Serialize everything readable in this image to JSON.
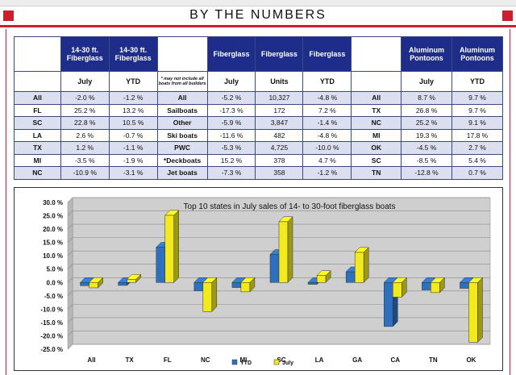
{
  "header": {
    "title": "BY THE NUMBERS"
  },
  "table": {
    "columns": [
      {
        "header": "",
        "sub": ""
      },
      {
        "header": "14-30 ft. Fiberglass",
        "sub": "July"
      },
      {
        "header": "14-30 ft. Fiberglass",
        "sub": "YTD"
      },
      {
        "header": "",
        "sub": "* may not include all boats from all builders"
      },
      {
        "header": "Fiberglass",
        "sub": "July"
      },
      {
        "header": "Fiberglass",
        "sub": "Units"
      },
      {
        "header": "Fiberglass",
        "sub": "YTD"
      },
      {
        "header": "",
        "sub": ""
      },
      {
        "header": "Aluminum Pontoons",
        "sub": "July"
      },
      {
        "header": "Aluminum Pontoons",
        "sub": "YTD"
      }
    ],
    "rows": [
      [
        "All",
        "-2.0 %",
        "-1.2 %",
        "All",
        "-5.2 %",
        "10,327",
        "-4.8 %",
        "All",
        "8.7 %",
        "9.7 %"
      ],
      [
        "FL",
        "25.2 %",
        "13.2 %",
        "Sailboats",
        "-17.3 %",
        "172",
        "7.2 %",
        "TX",
        "26.8 %",
        "9.7 %"
      ],
      [
        "SC",
        "22.8 %",
        "10.5 %",
        "Other",
        "-5.9 %",
        "3,847",
        "-1.4 %",
        "NC",
        "25.2 %",
        "9.1 %"
      ],
      [
        "LA",
        "2.6 %",
        "-0.7 %",
        "Ski boats",
        "-11.6 %",
        "482",
        "-4.8 %",
        "MI",
        "19.3 %",
        "17.8 %"
      ],
      [
        "TX",
        "1.2 %",
        "-1.1 %",
        "PWC",
        "-5.3 %",
        "4,725",
        "-10.0 %",
        "OK",
        "-4.5 %",
        "2.7 %"
      ],
      [
        "MI",
        "-3.5 %",
        "-1.9 %",
        "*Deckboats",
        "15.2 %",
        "378",
        "4.7 %",
        "SC",
        "-8.5 %",
        "5.4 %"
      ],
      [
        "NC",
        "-10.9 %",
        "-3.1 %",
        "Jet boats",
        "-7.3 %",
        "358",
        "-1.2 %",
        "TN",
        "-12.8 %",
        "0.7 %"
      ]
    ]
  },
  "chart_data": {
    "type": "bar",
    "title": "Top 10 states in July sales of 14- to 30-foot fiberglass boats",
    "categories": [
      "All",
      "TX",
      "FL",
      "NC",
      "MI",
      "SC",
      "LA",
      "GA",
      "CA",
      "TN",
      "OK"
    ],
    "series": [
      {
        "name": "YTD",
        "values": [
          -1.2,
          -1.1,
          13.2,
          -3.1,
          -1.9,
          10.5,
          -0.7,
          4.0,
          -16.5,
          -2.8,
          -2.2
        ],
        "color": "#2f6fc0"
      },
      {
        "name": "July",
        "values": [
          -2.0,
          1.2,
          25.2,
          -10.9,
          -3.5,
          22.8,
          2.6,
          11.3,
          -5.5,
          -3.8,
          -22.4
        ],
        "color": "#f2ea1c"
      }
    ],
    "yticks": [
      "30.0 %",
      "25.0 %",
      "20.0 %",
      "15.0 %",
      "10.0 %",
      "5.0 %",
      "0.0 %",
      "-5.0 %",
      "-10.0 %",
      "-15.0 %",
      "-20.0 %",
      "-25.0 %"
    ],
    "ylim": [
      -25,
      30
    ],
    "grid": true,
    "legend": "bottom-center"
  }
}
